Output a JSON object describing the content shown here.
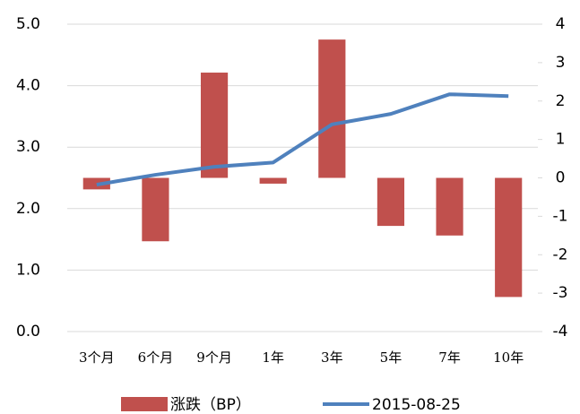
{
  "chart_data": {
    "type": "bar",
    "categories": [
      "3个月",
      "6个月",
      "9个月",
      "1年",
      "3年",
      "5年",
      "7年",
      "10年"
    ],
    "series": [
      {
        "name": "涨跌（BP）",
        "type": "bar",
        "axis": "y2",
        "color": "#c0504d",
        "values": [
          -0.3,
          -1.65,
          2.74,
          -0.15,
          3.6,
          -1.25,
          -1.5,
          -3.1
        ]
      },
      {
        "name": "2015-08-25",
        "type": "line",
        "axis": "y",
        "color": "#4f81bd",
        "values": [
          2.39,
          2.55,
          2.68,
          2.75,
          3.37,
          3.54,
          3.86,
          3.83
        ]
      }
    ],
    "ylim": [
      0,
      5
    ],
    "yticks": [
      {
        "value": 0,
        "label": "0.0"
      },
      {
        "value": 1,
        "label": "1.0"
      },
      {
        "value": 2,
        "label": "2.0"
      },
      {
        "value": 3,
        "label": "3.0"
      },
      {
        "value": 4,
        "label": "4.0"
      },
      {
        "value": 5,
        "label": "5.0"
      }
    ],
    "y2lim": [
      -4,
      4
    ],
    "y2ticks": [
      -4,
      -3,
      -2,
      -1,
      0,
      1,
      2,
      3,
      4
    ],
    "grid": true,
    "legend": "bottom"
  }
}
